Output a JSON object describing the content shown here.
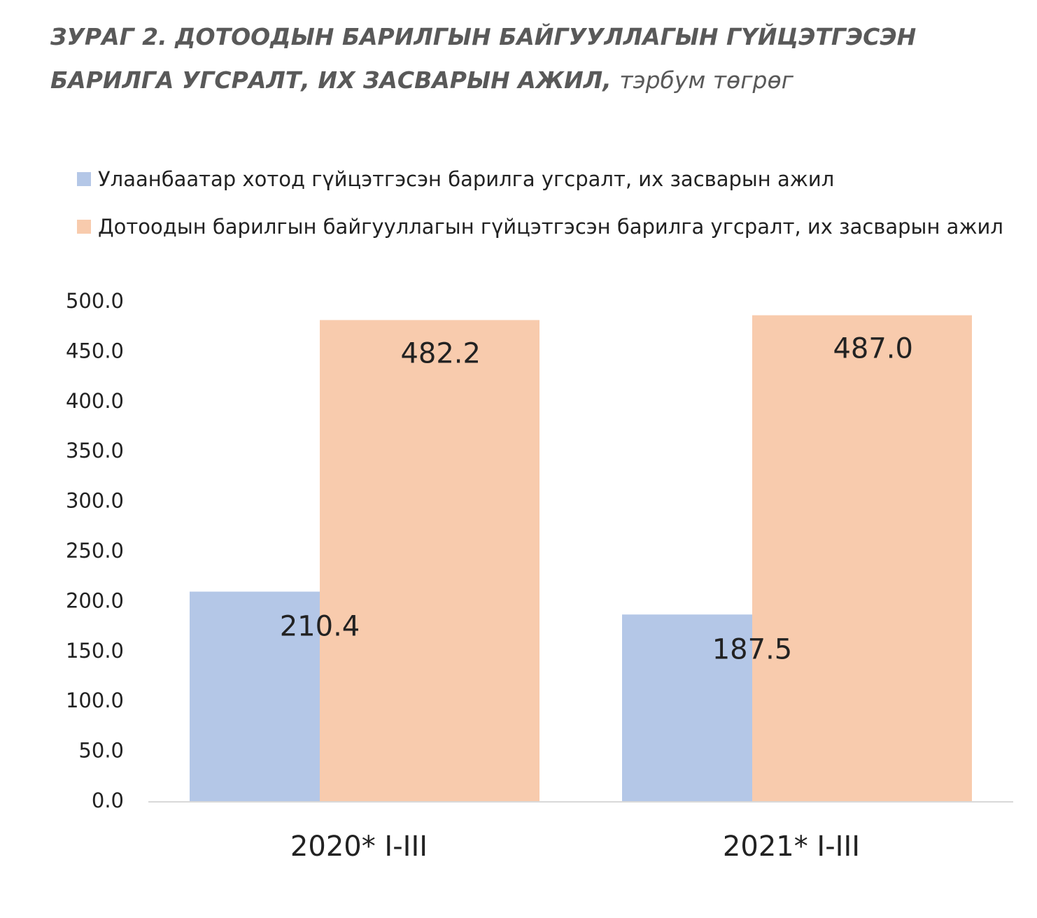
{
  "page": {
    "title": "ЗУРАГ 2. ДОТООДЫН БАРИЛГЫН БАЙГУУЛЛАГЫН ГҮЙЦЭТГЭСЭН БАРИЛГА УГСРАЛТ, ИХ ЗАСВАРЫН АЖИЛ,",
    "unit": "тэрбум төгрөг"
  },
  "chart_data": {
    "type": "bar",
    "title": "ЗУРАГ 2. ДОТООДЫН БАРИЛГЫН БАЙГУУЛЛАГЫН ГҮЙЦЭТГЭСЭН БАРИЛГА УГСРАЛТ, ИХ ЗАСВАРЫН АЖИЛ, тэрбум төгрөг",
    "categories": [
      "2020* I-III",
      "2021* I-III"
    ],
    "series": [
      {
        "name": "Улаанбаатар хотод гүйцэтгэсэн барилга угсралт, их засварын ажил",
        "values": [
          210.4,
          187.5
        ],
        "labels": [
          "210.4",
          "187.5"
        ],
        "color": "#b4c7e7"
      },
      {
        "name": "Дотоодын барилгын байгууллагын гүйцэтгэсэн барилга угсралт, их засварын ажил",
        "values": [
          482.2,
          487.0
        ],
        "labels": [
          "482.2",
          "487.0"
        ],
        "color": "#f8cbad"
      }
    ],
    "ylim": [
      0,
      500
    ],
    "yticks": [
      0,
      50,
      100,
      150,
      200,
      250,
      300,
      350,
      400,
      450,
      500
    ],
    "ytick_labels": [
      "0.0",
      "50.0",
      "100.0",
      "150.0",
      "200.0",
      "250.0",
      "300.0",
      "350.0",
      "400.0",
      "450.0",
      "500.0"
    ],
    "grid": false,
    "legend": "top-left",
    "xlabel": "",
    "ylabel": ""
  }
}
